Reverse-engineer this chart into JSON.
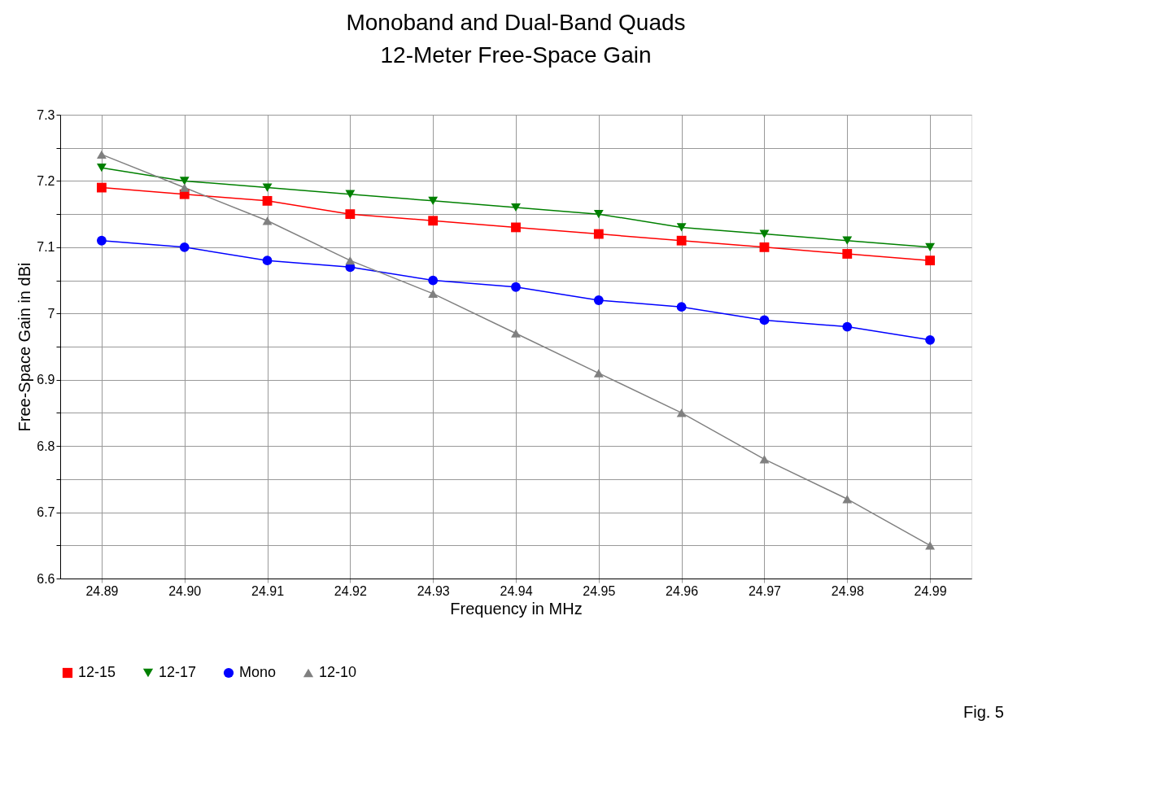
{
  "chart_data": {
    "type": "line",
    "title": "Monoband and Dual-Band Quads\n12-Meter Free-Space Gain",
    "xlabel": "Frequency in MHz",
    "ylabel": "Free-Space Gain in dBi",
    "categories": [
      "24.89",
      "24.90",
      "24.91",
      "24.92",
      "24.93",
      "24.94",
      "24.95",
      "24.96",
      "24.97",
      "24.98",
      "24.99"
    ],
    "series": [
      {
        "name": "12-15",
        "color": "#ff0000",
        "marker": "square",
        "values": [
          7.19,
          7.18,
          7.17,
          7.15,
          7.14,
          7.13,
          7.12,
          7.11,
          7.1,
          7.09,
          7.08
        ]
      },
      {
        "name": "12-17",
        "color": "#008000",
        "marker": "triangle-down",
        "values": [
          7.22,
          7.2,
          7.19,
          7.18,
          7.17,
          7.16,
          7.15,
          7.13,
          7.12,
          7.11,
          7.1
        ]
      },
      {
        "name": "Mono",
        "color": "#0000ff",
        "marker": "circle",
        "values": [
          7.11,
          7.1,
          7.08,
          7.07,
          7.05,
          7.04,
          7.02,
          7.01,
          6.99,
          6.98,
          6.96
        ]
      },
      {
        "name": "12-10",
        "color": "#808080",
        "marker": "triangle",
        "values": [
          7.24,
          7.19,
          7.14,
          7.08,
          7.03,
          6.97,
          6.91,
          6.85,
          6.78,
          6.72,
          6.65
        ]
      }
    ],
    "ylim": [
      6.6,
      7.3
    ],
    "yticks": [
      6.6,
      {
        "value": 6.65,
        "label": null
      },
      6.7,
      {
        "value": 6.75,
        "label": null
      },
      6.8,
      {
        "value": 6.85,
        "label": null
      },
      6.9,
      {
        "value": 6.95,
        "label": null
      },
      {
        "value": 7.0,
        "label": "7"
      },
      {
        "value": 7.05,
        "label": null
      },
      7.1,
      {
        "value": 7.15,
        "label": null
      },
      7.2,
      {
        "value": 7.25,
        "label": null
      },
      7.3
    ],
    "grid": true,
    "legend": "bottom",
    "line_style": "solid",
    "annotations": [
      "Fig. 5"
    ]
  }
}
